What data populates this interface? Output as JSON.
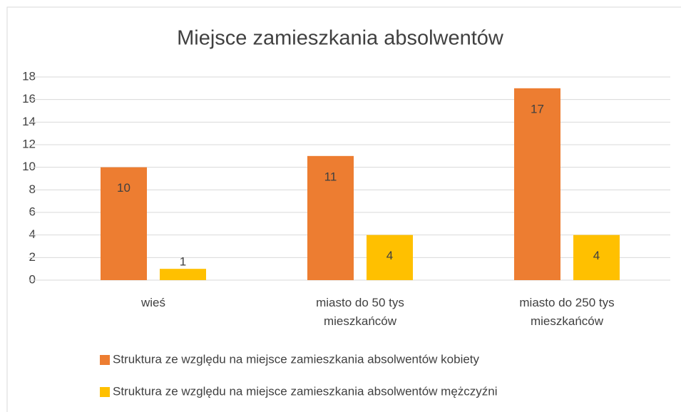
{
  "chart_data": {
    "type": "bar",
    "title": "Miejsce zamieszkania absolwentów",
    "categories": [
      "wieś",
      "miasto do 50 tys mieszkańców",
      "miasto do 250 tys mieszkańców"
    ],
    "series": [
      {
        "name": "Struktura ze względu na miejsce zamieszkania absolwentów kobiety",
        "color": "#ED7D31",
        "values": [
          10,
          11,
          17
        ]
      },
      {
        "name": "Struktura ze względu na miejsce zamieszkania absolwentów mężczyźni",
        "color": "#FFC000",
        "values": [
          1,
          4,
          4
        ]
      }
    ],
    "ylim": [
      0,
      18
    ],
    "yticks": [
      0,
      2,
      4,
      6,
      8,
      10,
      12,
      14,
      16,
      18
    ],
    "grid": true,
    "legend": "bottom"
  }
}
